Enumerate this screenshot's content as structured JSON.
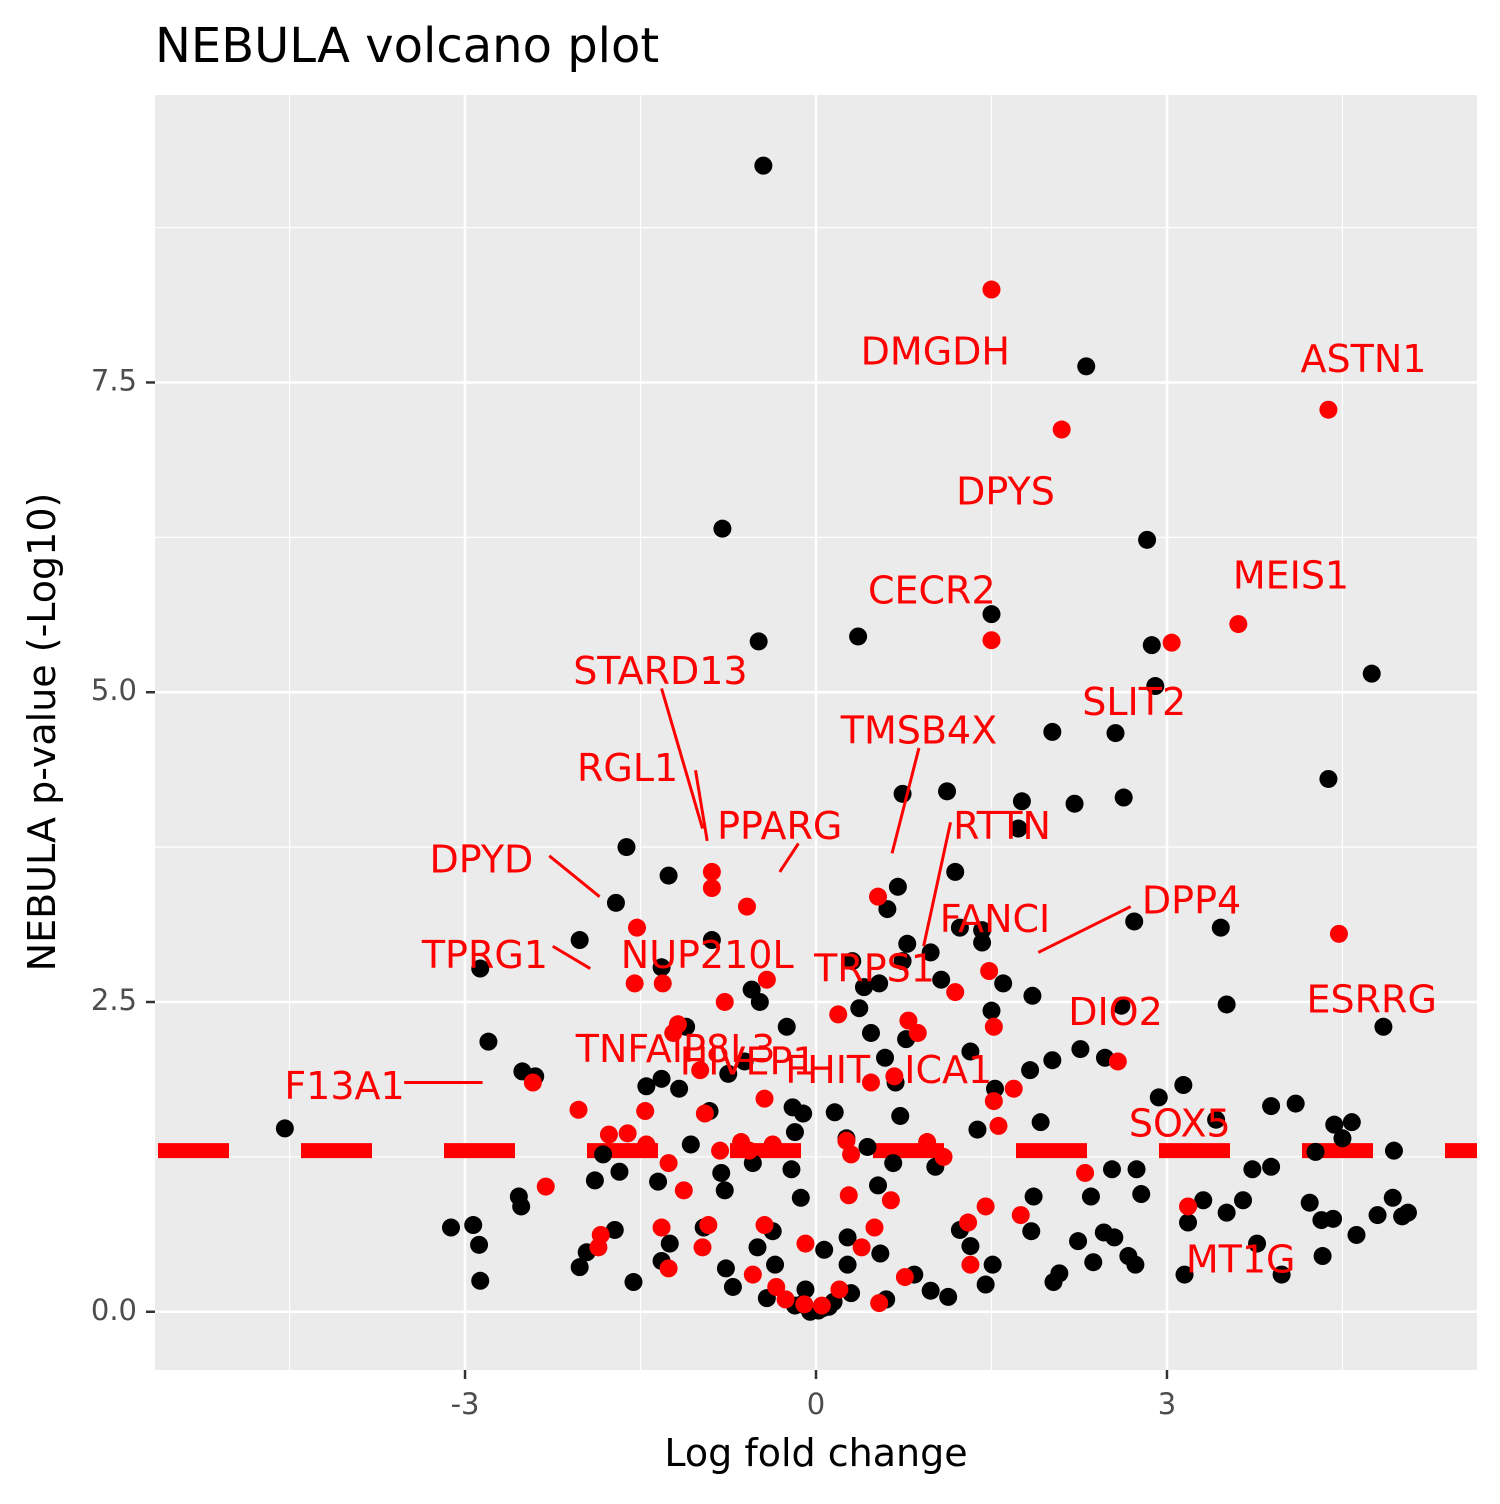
{
  "chart_data": {
    "type": "scatter",
    "title": "NEBULA volcano plot",
    "xlabel": "Log fold change",
    "ylabel": "NEBULA p-value (-Log10)",
    "xlim": [
      -5.65,
      5.65
    ],
    "ylim": [
      -0.47,
      9.82
    ],
    "x_ticks": [
      -3,
      0,
      3
    ],
    "x_tick_labels": [
      "-3",
      "0",
      "3"
    ],
    "y_ticks": [
      0,
      2.5,
      5,
      7.5
    ],
    "y_tick_labels": [
      "0.0",
      "2.5",
      "5.0",
      "7.5"
    ],
    "grid": true,
    "threshold_line": {
      "y": 1.3,
      "color": "#ff0000",
      "style": "dashed"
    },
    "colors": {
      "panel": "#ebebeb",
      "grid": "#ffffff",
      "not_highlighted": "#000000",
      "highlighted": "#ff0000",
      "axis_text": "#4d4d4d"
    },
    "labeled_genes": [
      {
        "gene": "DMGDH",
        "x": 1.5,
        "y": 8.25,
        "label_x": 1.02,
        "label_y": 7.73
      },
      {
        "gene": "ASTN1",
        "x": 4.38,
        "y": 7.28,
        "label_x": 4.68,
        "label_y": 7.67
      },
      {
        "gene": "DPYS",
        "x": 2.1,
        "y": 7.12,
        "label_x": 1.62,
        "label_y": 6.6
      },
      {
        "gene": "CECR2",
        "x": 1.5,
        "y": 5.42,
        "label_x": 0.99,
        "label_y": 5.8
      },
      {
        "gene": "MEIS1",
        "x": 3.61,
        "y": 5.55,
        "label_x": 4.06,
        "label_y": 5.92
      },
      {
        "gene": "SLIT2",
        "x": 3.04,
        "y": 5.4,
        "label_x": 2.72,
        "label_y": 4.9
      },
      {
        "gene": "STARD13",
        "x": -0.89,
        "y": 3.8,
        "label_x": -1.33,
        "label_y": 5.15,
        "line": [
          [
            -1.32,
            5.03
          ],
          [
            -0.97,
            3.9
          ]
        ]
      },
      {
        "gene": "TMSB4X",
        "x": 0.65,
        "y": 3.7,
        "label_x": 0.88,
        "label_y": 4.67,
        "line": [
          [
            0.88,
            4.55
          ],
          [
            0.65,
            3.7
          ]
        ]
      },
      {
        "gene": "RGL1",
        "x": -0.93,
        "y": 3.8,
        "label_x": -1.61,
        "label_y": 4.37,
        "line": [
          [
            -1.03,
            4.37
          ],
          [
            -0.93,
            3.8
          ]
        ]
      },
      {
        "gene": "PPARG",
        "x": -0.31,
        "y": 3.55,
        "label_x": -0.31,
        "label_y": 3.9,
        "line": [
          [
            -0.15,
            3.78
          ],
          [
            -0.31,
            3.55
          ]
        ]
      },
      {
        "gene": "RTTN",
        "x": 0.92,
        "y": 2.95,
        "label_x": 1.59,
        "label_y": 3.9,
        "line": [
          [
            1.15,
            3.95
          ],
          [
            0.92,
            2.95
          ]
        ]
      },
      {
        "gene": "DPYD",
        "x": -1.85,
        "y": 3.35,
        "label_x": -2.86,
        "label_y": 3.63,
        "line": [
          [
            -2.28,
            3.68
          ],
          [
            -1.85,
            3.35
          ]
        ]
      },
      {
        "gene": "FANCI",
        "x": 1.23,
        "y": 3.15,
        "label_x": 1.53,
        "label_y": 3.15
      },
      {
        "gene": "DPP4",
        "x": 1.9,
        "y": 2.9,
        "label_x": 3.21,
        "label_y": 3.3,
        "line": [
          [
            2.69,
            3.27
          ],
          [
            1.9,
            2.9
          ]
        ]
      },
      {
        "gene": "TPRG1",
        "x": -1.93,
        "y": 2.77,
        "label_x": -2.83,
        "label_y": 2.86,
        "line": [
          [
            -2.25,
            2.95
          ],
          [
            -1.93,
            2.77
          ]
        ]
      },
      {
        "gene": "NUP210L",
        "x": -1.63,
        "y": 2.9,
        "label_x": -0.93,
        "label_y": 2.86
      },
      {
        "gene": "TRPS1",
        "x": 0.5,
        "y": 2.8,
        "label_x": 0.5,
        "label_y": 2.75
      },
      {
        "gene": "DIO2",
        "x": 2.56,
        "y": 2.4,
        "label_x": 2.56,
        "label_y": 2.4
      },
      {
        "gene": "ESRRG",
        "x": 4.47,
        "y": 3.05,
        "label_x": 4.75,
        "label_y": 2.5
      },
      {
        "gene": "TNFAIP8L3",
        "x": -1.2,
        "y": 2.2,
        "label_x": -1.2,
        "label_y": 2.1
      },
      {
        "gene": "HIVEP1",
        "x": -0.58,
        "y": 2.05,
        "label_x": -0.58,
        "label_y": 2.0
      },
      {
        "gene": "FHIT",
        "x": 0.1,
        "y": 2.0,
        "label_x": 0.1,
        "label_y": 1.93
      },
      {
        "gene": "ICA1",
        "x": 0.95,
        "y": 2.0,
        "label_x": 1.13,
        "label_y": 1.93
      },
      {
        "gene": "F13A1",
        "x": -2.85,
        "y": 1.85,
        "label_x": -4.03,
        "label_y": 1.8,
        "line": [
          [
            -3.52,
            1.85
          ],
          [
            -2.85,
            1.85
          ]
        ]
      },
      {
        "gene": "SOX5",
        "x": 3.42,
        "y": 1.5,
        "label_x": 3.11,
        "label_y": 1.5
      },
      {
        "gene": "MT1G",
        "x": 3.11,
        "y": 0.4,
        "label_x": 3.63,
        "label_y": 0.4
      }
    ],
    "points_black": [
      [
        -0.45,
        9.25
      ],
      [
        2.31,
        7.63
      ],
      [
        -0.8,
        6.32
      ],
      [
        2.83,
        6.23
      ],
      [
        1.5,
        5.63
      ],
      [
        0.36,
        5.45
      ],
      [
        -0.49,
        5.41
      ],
      [
        2.87,
        5.38
      ],
      [
        4.75,
        5.15
      ],
      [
        2.9,
        5.05
      ],
      [
        2.02,
        4.68
      ],
      [
        2.56,
        4.67
      ],
      [
        4.38,
        4.3
      ],
      [
        1.12,
        4.2
      ],
      [
        0.74,
        4.18
      ],
      [
        1.76,
        4.12
      ],
      [
        2.21,
        4.1
      ],
      [
        2.63,
        4.15
      ],
      [
        1.73,
        3.9
      ],
      [
        -1.62,
        3.75
      ],
      [
        1.19,
        3.55
      ],
      [
        -1.26,
        3.52
      ],
      [
        0.7,
        3.43
      ],
      [
        -1.71,
        3.3
      ],
      [
        0.61,
        3.25
      ],
      [
        1.42,
        3.08
      ],
      [
        3.46,
        3.1
      ],
      [
        1.23,
        3.1
      ],
      [
        2.72,
        3.15
      ],
      [
        0.78,
        2.97
      ],
      [
        -2.02,
        3.0
      ],
      [
        -0.89,
        3.0
      ],
      [
        1.42,
        2.98
      ],
      [
        0.98,
        2.9
      ],
      [
        -1.32,
        2.78
      ],
      [
        -2.87,
        2.77
      ],
      [
        0.74,
        2.83
      ],
      [
        0.31,
        2.83
      ],
      [
        -0.55,
        2.6
      ],
      [
        0.54,
        2.65
      ],
      [
        1.07,
        2.68
      ],
      [
        1.6,
        2.65
      ],
      [
        0.41,
        2.62
      ],
      [
        1.85,
        2.55
      ],
      [
        -0.48,
        2.5
      ],
      [
        3.51,
        2.48
      ],
      [
        2.61,
        2.47
      ],
      [
        1.5,
        2.43
      ],
      [
        0.37,
        2.45
      ],
      [
        -2.8,
        2.18
      ],
      [
        4.85,
        2.3
      ],
      [
        -1.11,
        2.3
      ],
      [
        -0.25,
        2.3
      ],
      [
        2.26,
        2.12
      ],
      [
        0.47,
        2.25
      ],
      [
        0.77,
        2.2
      ],
      [
        0.59,
        2.05
      ],
      [
        1.32,
        2.1
      ],
      [
        -0.61,
        2.02
      ],
      [
        2.02,
        2.03
      ],
      [
        2.47,
        2.05
      ],
      [
        -2.51,
        1.94
      ],
      [
        -2.4,
        1.9
      ],
      [
        -1.32,
        1.88
      ],
      [
        -0.75,
        1.92
      ],
      [
        -1.17,
        1.8
      ],
      [
        1.53,
        1.8
      ],
      [
        1.83,
        1.95
      ],
      [
        -1.45,
        1.82
      ],
      [
        0.68,
        1.85
      ],
      [
        3.14,
        1.83
      ],
      [
        2.93,
        1.73
      ],
      [
        -0.2,
        1.65
      ],
      [
        3.89,
        1.66
      ],
      [
        4.1,
        1.68
      ],
      [
        3.42,
        1.55
      ],
      [
        4.43,
        1.51
      ],
      [
        4.58,
        1.53
      ],
      [
        1.92,
        1.53
      ],
      [
        -4.54,
        1.48
      ],
      [
        -0.91,
        1.62
      ],
      [
        -0.11,
        1.6
      ],
      [
        0.16,
        1.61
      ],
      [
        0.72,
        1.58
      ],
      [
        1.38,
        1.47
      ],
      [
        -0.18,
        1.45
      ],
      [
        -1.82,
        1.27
      ],
      [
        -1.07,
        1.35
      ],
      [
        0.44,
        1.33
      ],
      [
        0.26,
        1.4
      ],
      [
        4.27,
        1.29
      ],
      [
        4.5,
        1.4
      ],
      [
        4.94,
        1.3
      ],
      [
        -0.54,
        1.2
      ],
      [
        1.02,
        1.17
      ],
      [
        -1.68,
        1.13
      ],
      [
        -0.21,
        1.15
      ],
      [
        0.66,
        1.2
      ],
      [
        -0.81,
        1.12
      ],
      [
        -1.35,
        1.05
      ],
      [
        2.53,
        1.15
      ],
      [
        2.74,
        1.15
      ],
      [
        3.73,
        1.15
      ],
      [
        -0.78,
        0.98
      ],
      [
        -1.89,
        1.06
      ],
      [
        0.53,
        1.02
      ],
      [
        3.89,
        1.17
      ],
      [
        -2.54,
        0.93
      ],
      [
        -2.52,
        0.85
      ],
      [
        -0.13,
        0.92
      ],
      [
        1.86,
        0.93
      ],
      [
        2.35,
        0.93
      ],
      [
        3.31,
        0.9
      ],
      [
        2.78,
        0.95
      ],
      [
        3.65,
        0.9
      ],
      [
        4.22,
        0.88
      ],
      [
        4.93,
        0.92
      ],
      [
        5.06,
        0.8
      ],
      [
        5.01,
        0.77
      ],
      [
        -3.12,
        0.68
      ],
      [
        -2.93,
        0.7
      ],
      [
        -1.72,
        0.66
      ],
      [
        -0.96,
        0.68
      ],
      [
        -0.37,
        0.65
      ],
      [
        0.27,
        0.6
      ],
      [
        1.23,
        0.66
      ],
      [
        1.84,
        0.65
      ],
      [
        2.24,
        0.57
      ],
      [
        2.46,
        0.64
      ],
      [
        2.55,
        0.6
      ],
      [
        3.18,
        0.72
      ],
      [
        3.51,
        0.8
      ],
      [
        4.32,
        0.74
      ],
      [
        4.42,
        0.75
      ],
      [
        4.8,
        0.78
      ],
      [
        4.62,
        0.62
      ],
      [
        -2.88,
        0.54
      ],
      [
        -1.96,
        0.48
      ],
      [
        -1.25,
        0.55
      ],
      [
        -0.5,
        0.52
      ],
      [
        0.07,
        0.5
      ],
      [
        0.55,
        0.47
      ],
      [
        1.32,
        0.53
      ],
      [
        2.37,
        0.4
      ],
      [
        2.67,
        0.45
      ],
      [
        3.77,
        0.55
      ],
      [
        4.33,
        0.45
      ],
      [
        -2.02,
        0.36
      ],
      [
        -1.32,
        0.41
      ],
      [
        -0.77,
        0.35
      ],
      [
        -0.35,
        0.38
      ],
      [
        0.27,
        0.38
      ],
      [
        0.84,
        0.3
      ],
      [
        1.51,
        0.38
      ],
      [
        2.08,
        0.31
      ],
      [
        2.73,
        0.38
      ],
      [
        3.15,
        0.3
      ],
      [
        3.98,
        0.3
      ],
      [
        -2.87,
        0.25
      ],
      [
        -1.56,
        0.24
      ],
      [
        -0.71,
        0.2
      ],
      [
        -0.09,
        0.18
      ],
      [
        0.3,
        0.15
      ],
      [
        0.98,
        0.17
      ],
      [
        1.45,
        0.22
      ],
      [
        2.03,
        0.24
      ],
      [
        -0.42,
        0.11
      ],
      [
        0.15,
        0.08
      ],
      [
        0.6,
        0.1
      ],
      [
        1.13,
        0.12
      ],
      [
        -0.18,
        0.05
      ],
      [
        0.06,
        0.03
      ],
      [
        -0.05,
        0.0
      ],
      [
        0.02,
        0.01
      ],
      [
        0.11,
        0.04
      ],
      [
        -0.12,
        0.06
      ]
    ],
    "points_red": [
      [
        1.5,
        8.25
      ],
      [
        4.38,
        7.28
      ],
      [
        2.1,
        7.12
      ],
      [
        3.61,
        5.55
      ],
      [
        3.04,
        5.4
      ],
      [
        1.5,
        5.42
      ],
      [
        -0.89,
        3.55
      ],
      [
        -0.89,
        3.42
      ],
      [
        0.53,
        3.35
      ],
      [
        -0.59,
        3.27
      ],
      [
        -1.53,
        3.1
      ],
      [
        4.47,
        3.05
      ],
      [
        1.48,
        2.75
      ],
      [
        -0.42,
        2.68
      ],
      [
        -1.55,
        2.65
      ],
      [
        -1.31,
        2.65
      ],
      [
        1.19,
        2.58
      ],
      [
        -0.78,
        2.5
      ],
      [
        0.19,
        2.4
      ],
      [
        0.79,
        2.35
      ],
      [
        1.52,
        2.3
      ],
      [
        -1.18,
        2.32
      ],
      [
        -1.22,
        2.25
      ],
      [
        0.87,
        2.25
      ],
      [
        2.58,
        2.02
      ],
      [
        -0.99,
        1.95
      ],
      [
        0.67,
        1.9
      ],
      [
        1.69,
        1.8
      ],
      [
        -2.42,
        1.85
      ],
      [
        0.47,
        1.85
      ],
      [
        -0.44,
        1.72
      ],
      [
        1.52,
        1.7
      ],
      [
        -2.03,
        1.63
      ],
      [
        -1.46,
        1.62
      ],
      [
        -0.95,
        1.6
      ],
      [
        1.56,
        1.5
      ],
      [
        -1.61,
        1.44
      ],
      [
        -1.77,
        1.43
      ],
      [
        -0.64,
        1.37
      ],
      [
        -0.37,
        1.35
      ],
      [
        0.26,
        1.38
      ],
      [
        0.95,
        1.37
      ],
      [
        -1.45,
        1.35
      ],
      [
        -0.82,
        1.3
      ],
      [
        -0.57,
        1.3
      ],
      [
        -1.26,
        1.2
      ],
      [
        0.3,
        1.27
      ],
      [
        1.09,
        1.25
      ],
      [
        2.3,
        1.12
      ],
      [
        -2.31,
        1.01
      ],
      [
        -1.13,
        0.98
      ],
      [
        0.28,
        0.94
      ],
      [
        0.64,
        0.9
      ],
      [
        1.45,
        0.85
      ],
      [
        3.18,
        0.85
      ],
      [
        1.75,
        0.78
      ],
      [
        -1.32,
        0.68
      ],
      [
        -0.92,
        0.7
      ],
      [
        -0.44,
        0.7
      ],
      [
        0.5,
        0.68
      ],
      [
        1.3,
        0.72
      ],
      [
        -1.84,
        0.62
      ],
      [
        -1.86,
        0.52
      ],
      [
        -0.97,
        0.52
      ],
      [
        -0.09,
        0.55
      ],
      [
        0.39,
        0.52
      ],
      [
        1.32,
        0.38
      ],
      [
        -1.26,
        0.35
      ],
      [
        -0.54,
        0.3
      ],
      [
        0.76,
        0.28
      ],
      [
        -0.34,
        0.2
      ],
      [
        0.2,
        0.18
      ],
      [
        0.54,
        0.07
      ],
      [
        -0.26,
        0.1
      ],
      [
        -0.1,
        0.06
      ],
      [
        0.05,
        0.05
      ]
    ]
  }
}
